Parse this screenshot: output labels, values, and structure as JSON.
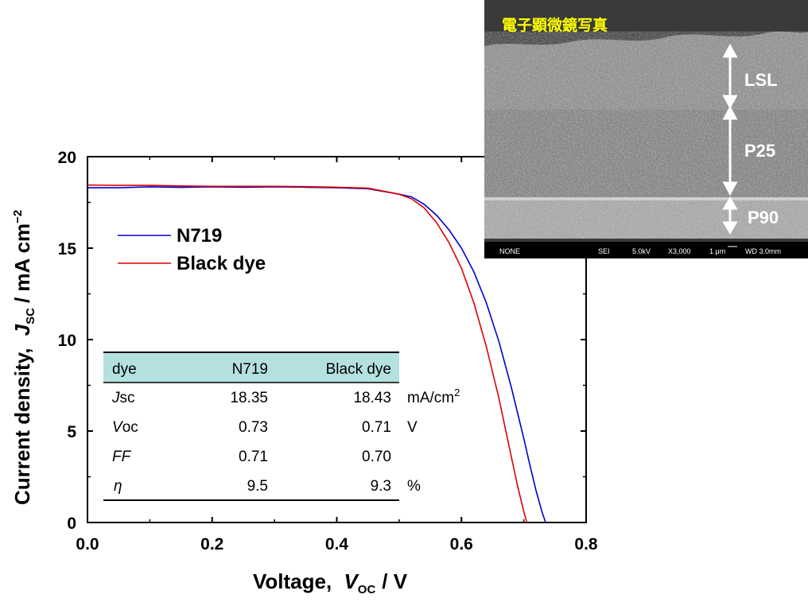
{
  "chart_data": {
    "type": "line",
    "xlabel_main": "Voltage,",
    "xlabel_var": "V",
    "xlabel_sub": "OC",
    "xlabel_unit": "/ V",
    "ylabel_main": "Current density,",
    "ylabel_var": "J",
    "ylabel_sub": "SC",
    "ylabel_unit": "/ mA cm",
    "ylabel_sup": "−2",
    "xlim": [
      0.0,
      0.8
    ],
    "ylim": [
      0,
      20
    ],
    "x_ticks": [
      "0.0",
      "0.2",
      "0.4",
      "0.6",
      "0.8"
    ],
    "y_ticks": [
      "0",
      "5",
      "10",
      "15",
      "20"
    ],
    "legend_position": "upper-left",
    "series": [
      {
        "name": "N719",
        "color": "#0000cc",
        "x": [
          0.0,
          0.05,
          0.1,
          0.15,
          0.2,
          0.25,
          0.3,
          0.35,
          0.4,
          0.45,
          0.5,
          0.52,
          0.54,
          0.56,
          0.58,
          0.6,
          0.62,
          0.64,
          0.66,
          0.68,
          0.7,
          0.71,
          0.72,
          0.73,
          0.735
        ],
        "y": [
          18.3,
          18.3,
          18.35,
          18.32,
          18.35,
          18.33,
          18.35,
          18.33,
          18.3,
          18.25,
          17.95,
          17.8,
          17.4,
          16.8,
          16.0,
          15.0,
          13.7,
          12.0,
          9.9,
          7.4,
          4.6,
          3.1,
          1.7,
          0.5,
          0.0
        ]
      },
      {
        "name": "Black dye",
        "color": "#dd0000",
        "x": [
          0.0,
          0.05,
          0.1,
          0.15,
          0.2,
          0.25,
          0.3,
          0.35,
          0.4,
          0.45,
          0.5,
          0.52,
          0.54,
          0.56,
          0.58,
          0.6,
          0.62,
          0.64,
          0.66,
          0.68,
          0.69,
          0.7,
          0.705
        ],
        "y": [
          18.45,
          18.43,
          18.43,
          18.4,
          18.38,
          18.38,
          18.38,
          18.36,
          18.33,
          18.28,
          17.95,
          17.7,
          17.2,
          16.4,
          15.3,
          13.9,
          12.0,
          9.6,
          6.8,
          3.6,
          2.0,
          0.6,
          0.0
        ]
      }
    ],
    "table": {
      "headers": [
        "dye",
        "N719",
        "Black dye"
      ],
      "rows": [
        {
          "param": "J",
          "param_rest": "sc",
          "n719": "18.35",
          "black": "18.43",
          "unit": "mA/cm",
          "unit_sup": "2"
        },
        {
          "param": "V",
          "param_rest": "oc",
          "n719": "0.73",
          "black": "0.71",
          "unit": "V",
          "unit_sup": ""
        },
        {
          "param": "FF",
          "param_rest": "",
          "n719": "0.71",
          "black": "0.70",
          "unit": "",
          "unit_sup": ""
        },
        {
          "param": "η",
          "param_rest": "",
          "n719": "9.5",
          "black": "9.3",
          "unit": "%",
          "unit_sup": ""
        }
      ]
    }
  },
  "inset": {
    "title": "電子顕微鏡写真",
    "layers": [
      "LSL",
      "P25",
      "P90"
    ],
    "info": {
      "label": "NONE",
      "detector": "SEI",
      "voltage": "5.0kV",
      "magnification": "X3,000",
      "scale": "1 μm",
      "wd": "WD 3.0mm"
    }
  },
  "colors": {
    "header_bg": "#b4e0e0",
    "sem_dark": "#3a3a3a",
    "sem_light": "#9a9a9a"
  }
}
